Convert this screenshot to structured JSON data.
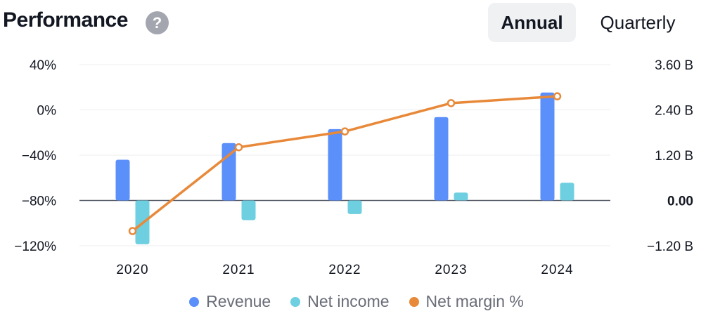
{
  "header": {
    "title": "Performance",
    "help_glyph": "?",
    "tabs": [
      {
        "label": "Annual",
        "selected": true
      },
      {
        "label": "Quarterly",
        "selected": false
      }
    ]
  },
  "colors": {
    "revenue": "#5b8ff9",
    "net_income": "#6ecfe0",
    "net_margin": "#e8893a",
    "grid": "#eceef1",
    "zero_line": "#555a66"
  },
  "chart_data": {
    "type": "bar",
    "categories": [
      "2020",
      "2021",
      "2022",
      "2023",
      "2024"
    ],
    "left_axis": {
      "ticks": [
        "40%",
        "0%",
        "−40%",
        "−80%",
        "−120%"
      ],
      "ylim": [
        -120,
        40
      ],
      "unit": "%"
    },
    "right_axis": {
      "ticks": [
        "3.60 B",
        "2.40 B",
        "1.20 B",
        "0.00",
        "−1.20 B"
      ],
      "ylim": [
        -1.2,
        3.6
      ],
      "unit": "B",
      "bold_tick": "0.00"
    },
    "series": [
      {
        "name": "Revenue",
        "kind": "bar",
        "axis": "right",
        "values": [
          1.08,
          1.52,
          1.89,
          2.21,
          2.86
        ]
      },
      {
        "name": "Net income",
        "kind": "bar",
        "axis": "right",
        "values": [
          -1.16,
          -0.52,
          -0.36,
          0.21,
          0.47
        ]
      },
      {
        "name": "Net margin %",
        "kind": "line",
        "axis": "left",
        "values": [
          -107,
          -33,
          -19,
          6,
          12
        ]
      }
    ],
    "legend": {
      "position": "bottom",
      "items": [
        "Revenue",
        "Net income",
        "Net margin %"
      ]
    },
    "grid": true
  }
}
